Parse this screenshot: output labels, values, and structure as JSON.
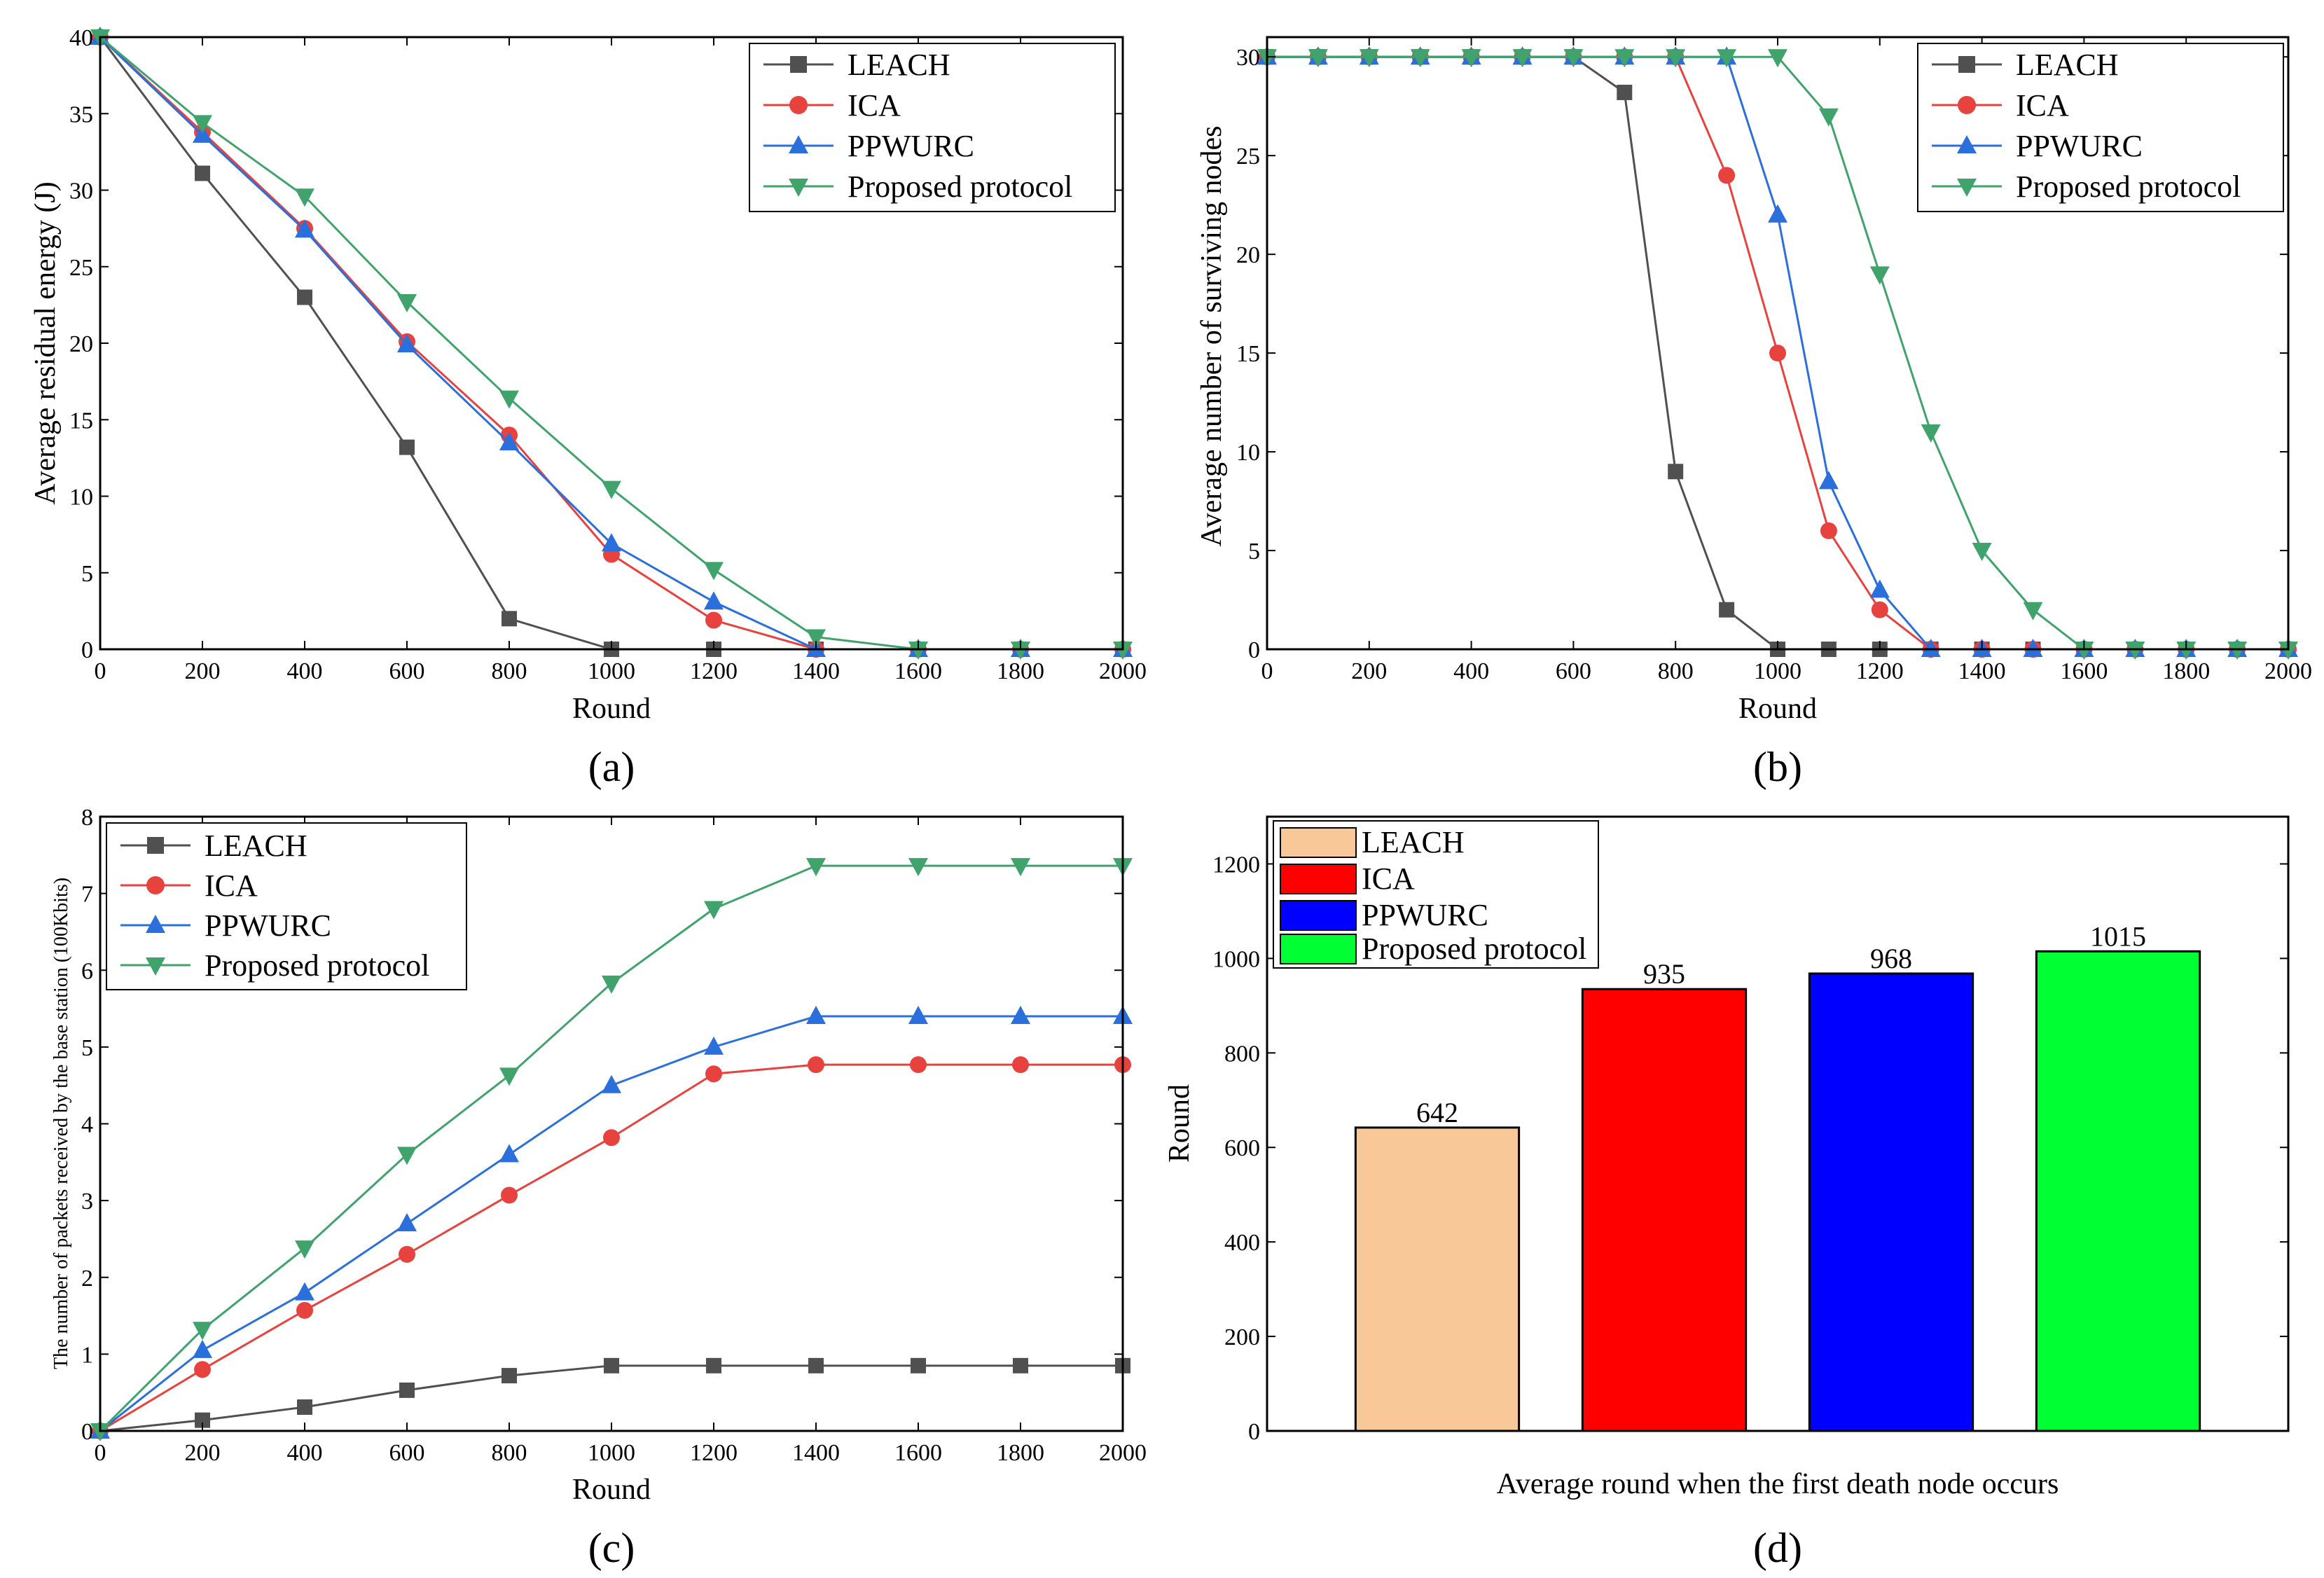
{
  "chart_data": [
    {
      "id": "a",
      "type": "line",
      "caption": "(a)",
      "xlabel": "Round",
      "ylabel": "Average residual energy (J)",
      "xlim": [
        0,
        2000
      ],
      "ylim": [
        0,
        40
      ],
      "xticks": [
        "0",
        "200",
        "400",
        "600",
        "800",
        "1000",
        "1200",
        "1400",
        "1600",
        "1800",
        "2000"
      ],
      "yticks": [
        "0",
        "5",
        "10",
        "15",
        "20",
        "25",
        "30",
        "35",
        "40"
      ],
      "legend_position": "top-right",
      "series": [
        {
          "name": "LEACH",
          "color": "#505050",
          "marker": "square",
          "x": [
            0,
            200,
            400,
            600,
            800,
            1000,
            1200,
            1400,
            1600,
            1800,
            2000
          ],
          "y": [
            40,
            31.1,
            23.0,
            13.2,
            2.0,
            0,
            0,
            0,
            0,
            0,
            0
          ]
        },
        {
          "name": "ICA",
          "color": "#e8423f",
          "marker": "circle",
          "x": [
            0,
            200,
            400,
            600,
            800,
            1000,
            1200,
            1400,
            1600,
            1800,
            2000
          ],
          "y": [
            40,
            33.8,
            27.5,
            20.1,
            14.0,
            6.2,
            1.9,
            0,
            0,
            0,
            0
          ]
        },
        {
          "name": "PPWURC",
          "color": "#2a6fdb",
          "marker": "triangle-up",
          "x": [
            0,
            200,
            400,
            600,
            800,
            1000,
            1200,
            1400,
            1600,
            1800,
            2000
          ],
          "y": [
            40,
            33.6,
            27.4,
            19.9,
            13.5,
            6.9,
            3.1,
            0,
            0,
            0,
            0
          ]
        },
        {
          "name": "Proposed protocol",
          "color": "#3fa36b",
          "marker": "triangle-down",
          "x": [
            0,
            200,
            400,
            600,
            800,
            1000,
            1200,
            1400,
            1600,
            1800,
            2000
          ],
          "y": [
            40,
            34.4,
            29.6,
            22.7,
            16.4,
            10.5,
            5.2,
            0.8,
            0,
            0,
            0
          ]
        }
      ]
    },
    {
      "id": "b",
      "type": "line",
      "caption": "(b)",
      "xlabel": "Round",
      "ylabel": "Average number of surviving nodes",
      "xlim": [
        0,
        2000
      ],
      "ylim": [
        0,
        31
      ],
      "xticks": [
        "0",
        "200",
        "400",
        "600",
        "800",
        "1000",
        "1200",
        "1400",
        "1600",
        "1800",
        "2000"
      ],
      "yticks": [
        "0",
        "5",
        "10",
        "15",
        "20",
        "25",
        "30"
      ],
      "legend_position": "top-right",
      "series": [
        {
          "name": "LEACH",
          "color": "#505050",
          "marker": "square",
          "x": [
            0,
            100,
            200,
            300,
            400,
            500,
            600,
            700,
            800,
            900,
            1000,
            1100,
            1200,
            1300,
            1400,
            1500,
            1600,
            1700,
            1800,
            1900,
            2000
          ],
          "y": [
            30,
            30,
            30,
            30,
            30,
            30,
            30,
            28.2,
            9,
            2,
            0,
            0,
            0,
            0,
            0,
            0,
            0,
            0,
            0,
            0,
            0
          ]
        },
        {
          "name": "ICA",
          "color": "#e8423f",
          "marker": "circle",
          "x": [
            0,
            100,
            200,
            300,
            400,
            500,
            600,
            700,
            800,
            900,
            1000,
            1100,
            1200,
            1300,
            1400,
            1500,
            1600,
            1700,
            1800,
            1900,
            2000
          ],
          "y": [
            30,
            30,
            30,
            30,
            30,
            30,
            30,
            30,
            30,
            24,
            15,
            6,
            2,
            0,
            0,
            0,
            0,
            0,
            0,
            0,
            0
          ]
        },
        {
          "name": "PPWURC",
          "color": "#2a6fdb",
          "marker": "triangle-up",
          "x": [
            0,
            100,
            200,
            300,
            400,
            500,
            600,
            700,
            800,
            900,
            1000,
            1100,
            1200,
            1300,
            1400,
            1500,
            1600,
            1700,
            1800,
            1900,
            2000
          ],
          "y": [
            30,
            30,
            30,
            30,
            30,
            30,
            30,
            30,
            30,
            30,
            22,
            8.5,
            3,
            0,
            0,
            0,
            0,
            0,
            0,
            0,
            0
          ]
        },
        {
          "name": "Proposed protocol",
          "color": "#3fa36b",
          "marker": "triangle-down",
          "x": [
            0,
            100,
            200,
            300,
            400,
            500,
            600,
            700,
            800,
            900,
            1000,
            1100,
            1200,
            1300,
            1400,
            1500,
            1600,
            1700,
            1800,
            1900,
            2000
          ],
          "y": [
            30,
            30,
            30,
            30,
            30,
            30,
            30,
            30,
            30,
            30,
            30,
            27,
            19,
            11,
            5,
            2,
            0,
            0,
            0,
            0,
            0
          ]
        }
      ]
    },
    {
      "id": "c",
      "type": "line",
      "caption": "(c)",
      "xlabel": "Round",
      "ylabel": "The number of packets received by the base station (100Kbits)",
      "xlim": [
        0,
        2000
      ],
      "ylim": [
        0,
        8
      ],
      "xticks": [
        "0",
        "200",
        "400",
        "600",
        "800",
        "1000",
        "1200",
        "1400",
        "1600",
        "1800",
        "2000"
      ],
      "yticks": [
        "0",
        "1",
        "2",
        "3",
        "4",
        "5",
        "6",
        "7",
        "8"
      ],
      "legend_position": "top-left",
      "series": [
        {
          "name": "LEACH",
          "color": "#505050",
          "marker": "square",
          "x": [
            0,
            200,
            400,
            600,
            800,
            1000,
            1200,
            1400,
            1600,
            1800,
            2000
          ],
          "y": [
            0,
            0.14,
            0.31,
            0.53,
            0.72,
            0.85,
            0.85,
            0.85,
            0.85,
            0.85,
            0.85
          ]
        },
        {
          "name": "ICA",
          "color": "#e8423f",
          "marker": "circle",
          "x": [
            0,
            200,
            400,
            600,
            800,
            1000,
            1200,
            1400,
            1600,
            1800,
            2000
          ],
          "y": [
            0,
            0.8,
            1.57,
            2.3,
            3.07,
            3.82,
            4.65,
            4.77,
            4.77,
            4.77,
            4.77
          ]
        },
        {
          "name": "PPWURC",
          "color": "#2a6fdb",
          "marker": "triangle-up",
          "x": [
            0,
            200,
            400,
            600,
            800,
            1000,
            1200,
            1400,
            1600,
            1800,
            2000
          ],
          "y": [
            0,
            1.05,
            1.8,
            2.7,
            3.6,
            4.5,
            5.0,
            5.4,
            5.4,
            5.4,
            5.4
          ]
        },
        {
          "name": "Proposed protocol",
          "color": "#3fa36b",
          "marker": "triangle-down",
          "x": [
            0,
            200,
            400,
            600,
            800,
            1000,
            1200,
            1400,
            1600,
            1800,
            2000
          ],
          "y": [
            0,
            1.32,
            2.38,
            3.6,
            4.63,
            5.83,
            6.8,
            7.36,
            7.36,
            7.36,
            7.36
          ]
        }
      ]
    },
    {
      "id": "d",
      "type": "bar",
      "caption": "(d)",
      "xlabel": "Average round when the first death node occurs",
      "ylabel": "Round",
      "ylim": [
        0,
        1300
      ],
      "yticks": [
        "0",
        "200",
        "400",
        "600",
        "800",
        "1000",
        "1200"
      ],
      "legend_position": "top-left",
      "categories": [
        "LEACH",
        "ICA",
        "PPWURC",
        "Proposed protocol"
      ],
      "values": [
        642,
        935,
        968,
        1015
      ],
      "value_labels": [
        "642",
        "935",
        "968",
        "1015"
      ],
      "colors": [
        "#f9c898",
        "#ff0000",
        "#0000ff",
        "#00ff33"
      ]
    }
  ]
}
